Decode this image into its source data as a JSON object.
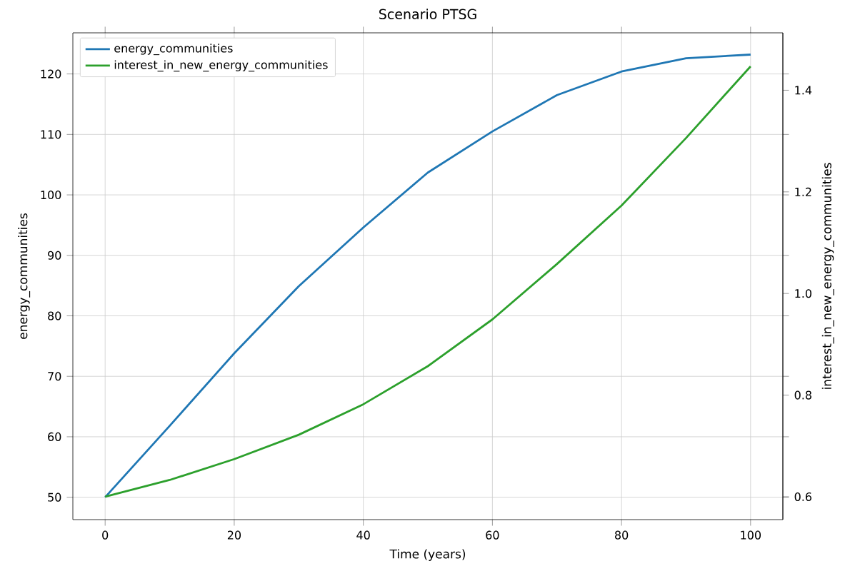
{
  "chart_data": {
    "type": "line",
    "title": "Scenario PTSG",
    "xlabel": "Time (years)",
    "ylabel": "energy_communities",
    "y2label": "interest_in_new_energy_communities",
    "x": [
      0,
      10,
      20,
      30,
      40,
      50,
      60,
      70,
      80,
      90,
      100
    ],
    "series": [
      {
        "name": "energy_communities",
        "color": "#1f77b4",
        "values": [
          50,
          61.8,
          73.8,
          84.9,
          94.6,
          103.7,
          110.5,
          116.5,
          120.4,
          122.6,
          123.2
        ]
      },
      {
        "name": "interest_in_new_energy_communities",
        "color": "#2ca02c",
        "axis": "y2",
        "values": [
          0.6,
          0.633,
          0.674,
          0.722,
          0.782,
          0.857,
          0.949,
          1.058,
          1.173,
          1.306,
          1.447
        ]
      }
    ],
    "xlim": [
      -5,
      105
    ],
    "xticks": [
      0,
      20,
      40,
      60,
      80,
      100
    ],
    "ylim": [
      46.3,
      126.8
    ],
    "yticks": [
      50,
      60,
      70,
      80,
      90,
      100,
      110,
      120
    ],
    "y2lim": [
      0.555,
      1.513
    ],
    "y2ticks": [
      {
        "value": 0.6,
        "label": "0.6"
      },
      {
        "value": 0.8,
        "label": "0.8"
      },
      {
        "value": 1.0,
        "label": "1.0"
      },
      {
        "value": 1.2,
        "label": "1.2"
      },
      {
        "value": 1.4,
        "label": "1.4"
      }
    ],
    "grid": true,
    "legend": "top left",
    "marker": "none",
    "line_style": "solid"
  }
}
